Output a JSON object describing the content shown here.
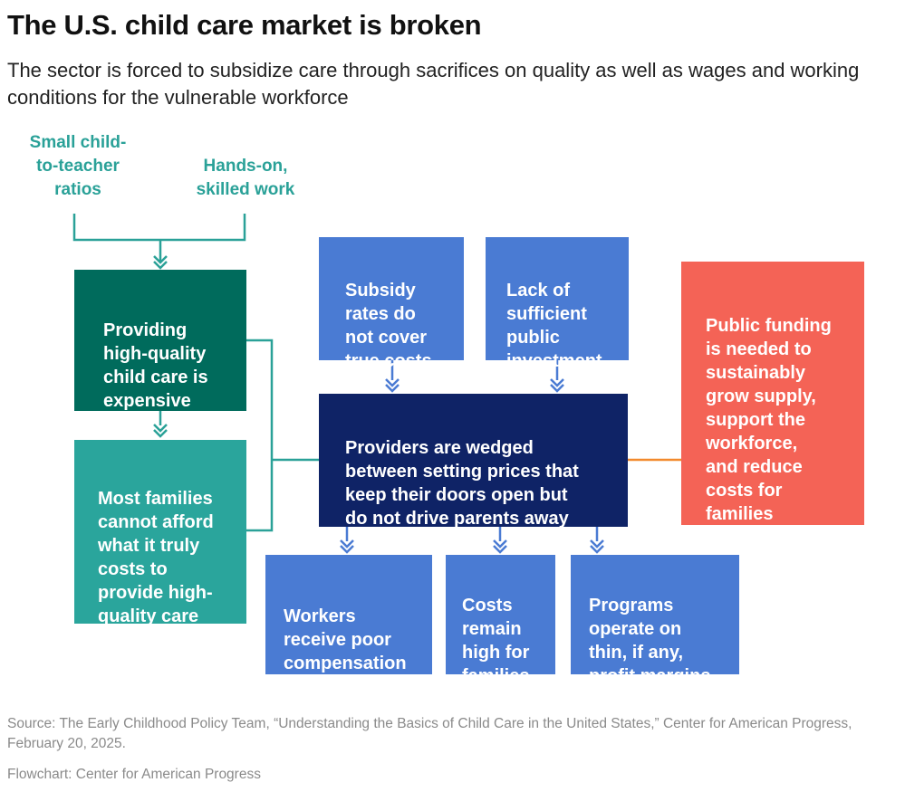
{
  "title": "The U.S. child care market is broken",
  "subtitle": "The sector is forced to subsidize care through sacrifices on quality as well as wages and working conditions for the vulnerable workforce",
  "inputs": {
    "small_ratios": "Small child-\nto-teacher\nratios",
    "hands_on": "Hands-on,\nskilled work"
  },
  "boxes": {
    "expensive": "Providing\nhigh-quality\nchild care is\nexpensive",
    "cannot_afford": "Most families\ncannot afford\nwhat it truly\ncosts to\nprovide high-\nquality care",
    "subsidy": "Subsidy\nrates do\nnot cover\ntrue costs",
    "lack_investment": "Lack of\nsufficient\npublic\ninvestment",
    "providers": "Providers are wedged\nbetween setting prices that\nkeep their doors open but\ndo not drive parents away",
    "public_funding": "Public funding\nis needed to\nsustainably\ngrow supply,\nsupport the\nworkforce,\nand reduce\ncosts for\nfamilies",
    "workers": "Workers\nreceive poor\ncompensation",
    "costs_high": "Costs\nremain\nhigh for\nfamilies",
    "programs": "Programs\noperate on\nthin, if any,\nprofit margins"
  },
  "colors": {
    "teal_text": "#2aa198",
    "dark_green": "#006b5c",
    "teal": "#2aa59c",
    "blue": "#4a7bd3",
    "navy": "#0f2366",
    "coral": "#f46356",
    "orange_line": "#f28a2e"
  },
  "footer": {
    "source": "Source: The Early Childhood Policy Team, “Understanding the Basics of Child Care in the United States,” Center for American Progress, February 20, 2025.",
    "credit": "Flowchart: Center for American Progress"
  }
}
